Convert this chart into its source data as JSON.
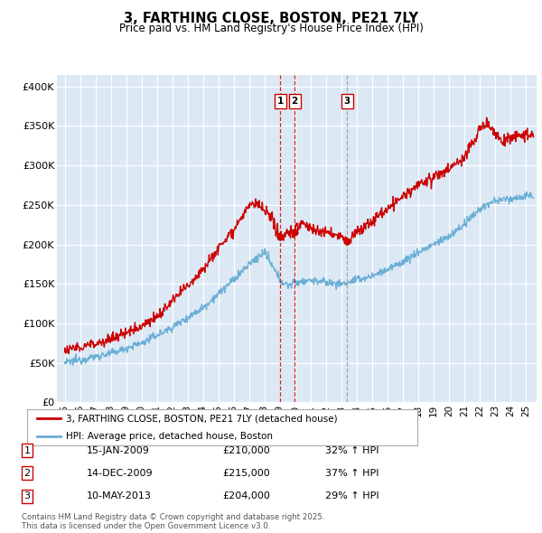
{
  "title": "3, FARTHING CLOSE, BOSTON, PE21 7LY",
  "subtitle": "Price paid vs. HM Land Registry's House Price Index (HPI)",
  "ylabel_ticks": [
    "£0",
    "£50K",
    "£100K",
    "£150K",
    "£200K",
    "£250K",
    "£300K",
    "£350K",
    "£400K"
  ],
  "ytick_values": [
    0,
    50000,
    100000,
    150000,
    200000,
    250000,
    300000,
    350000,
    400000
  ],
  "ylim": [
    0,
    415000
  ],
  "xlim_start": 1994.5,
  "xlim_end": 2025.7,
  "background_color": "#dce9f5",
  "grid_color": "#ffffff",
  "hpi_color": "#6baed6",
  "price_color": "#cc0000",
  "legend_label_price": "3, FARTHING CLOSE, BOSTON, PE21 7LY (detached house)",
  "legend_label_hpi": "HPI: Average price, detached house, Boston",
  "transactions": [
    {
      "label": "1",
      "date": 2009.04,
      "price": 210000,
      "text": "15-JAN-2009",
      "amount": "£210,000",
      "pct": "32% ↑ HPI",
      "line_color": "#cc0000",
      "line_style": "--"
    },
    {
      "label": "2",
      "date": 2009.96,
      "price": 215000,
      "text": "14-DEC-2009",
      "amount": "£215,000",
      "pct": "37% ↑ HPI",
      "line_color": "#cc0000",
      "line_style": "--"
    },
    {
      "label": "3",
      "date": 2013.37,
      "price": 204000,
      "text": "10-MAY-2013",
      "amount": "£204,000",
      "pct": "29% ↑ HPI",
      "line_color": "#999999",
      "line_style": "--"
    }
  ],
  "footer_line1": "Contains HM Land Registry data © Crown copyright and database right 2025.",
  "footer_line2": "This data is licensed under the Open Government Licence v3.0.",
  "xtick_years": [
    "95",
    "96",
    "97",
    "98",
    "99",
    "00",
    "01",
    "02",
    "03",
    "04",
    "05",
    "06",
    "07",
    "08",
    "09",
    "10",
    "11",
    "12",
    "13",
    "14",
    "15",
    "16",
    "17",
    "18",
    "19",
    "20",
    "21",
    "22",
    "23",
    "24",
    "25"
  ],
  "xtick_positions": [
    1995,
    1996,
    1997,
    1998,
    1999,
    2000,
    2001,
    2002,
    2003,
    2004,
    2005,
    2006,
    2007,
    2008,
    2009,
    2010,
    2011,
    2012,
    2013,
    2014,
    2015,
    2016,
    2017,
    2018,
    2019,
    2020,
    2021,
    2022,
    2023,
    2024,
    2025
  ]
}
